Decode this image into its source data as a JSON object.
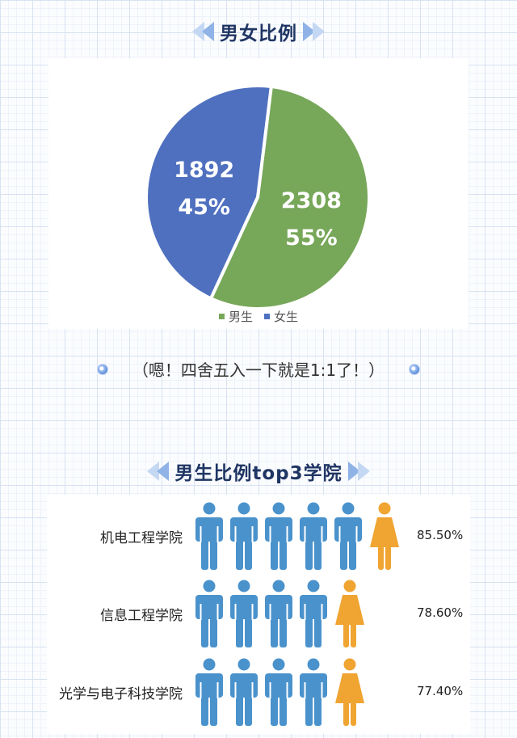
{
  "pie_section": {
    "title": "男女比例"
  },
  "note": {
    "text": "（嗯！四舍五入一下就是1:1了！）"
  },
  "top3_section": {
    "title": "男生比例top3学院"
  },
  "colors": {
    "male": "#77a759",
    "female": "#4f70bf",
    "male_icon": "#4a92cc",
    "female_icon": "#f0a431"
  },
  "chart_data": [
    {
      "type": "pie",
      "title": "男女比例",
      "labels": [
        "男生",
        "女生"
      ],
      "values": [
        2308,
        1892
      ],
      "percent_labels": [
        "55%",
        "45%"
      ],
      "colors": [
        "#77a759",
        "#4f70bf"
      ],
      "legend": [
        "男生",
        "女生"
      ],
      "legend_position": "bottom"
    },
    {
      "type": "table",
      "title": "男生比例top3学院",
      "categories": [
        "机电工程学院",
        "信息工程学院",
        "光学与电子科技学院"
      ],
      "value_labels": [
        "85.50%",
        "78.60%",
        "77.40%"
      ],
      "values": [
        85.5,
        78.6,
        77.4
      ],
      "icons": [
        {
          "male": 5,
          "female": 1
        },
        {
          "male": 4,
          "female": 1
        },
        {
          "male": 4,
          "female": 1
        }
      ]
    }
  ]
}
